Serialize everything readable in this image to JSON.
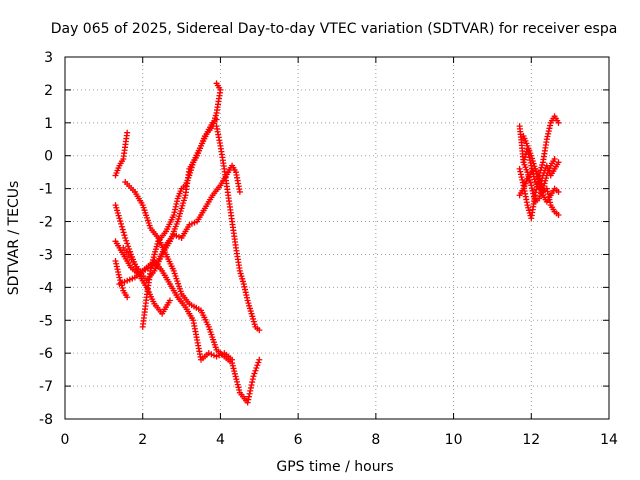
{
  "chart_data": {
    "type": "scatter",
    "title": "Day 065 of 2025, Sidereal Day-to-day VTEC variation (SDTVAR) for receiver espa",
    "xlabel": "GPS time / hours",
    "ylabel": "SDTVAR / TECUs",
    "xlim": [
      0,
      14
    ],
    "ylim": [
      -8,
      3
    ],
    "x_ticks": [
      "0",
      "2",
      "4",
      "6",
      "8",
      "10",
      "12",
      "14"
    ],
    "y_ticks": [
      "3",
      "2",
      "1",
      "0",
      "-1",
      "-2",
      "-3",
      "-4",
      "-5",
      "-6",
      "-7",
      "-8"
    ],
    "grid": true,
    "marker": "+",
    "color": "#ff0000",
    "series": [
      {
        "points": [
          [
            1.3,
            -0.6
          ],
          [
            1.4,
            -0.3
          ],
          [
            1.5,
            -0.1
          ],
          [
            1.6,
            0.7
          ]
        ]
      },
      {
        "points": [
          [
            1.55,
            -0.8
          ],
          [
            1.8,
            -1.1
          ],
          [
            2.0,
            -1.5
          ],
          [
            2.2,
            -2.2
          ],
          [
            2.4,
            -2.5
          ],
          [
            2.6,
            -3.0
          ],
          [
            2.8,
            -3.5
          ],
          [
            3.0,
            -4.2
          ],
          [
            3.2,
            -4.5
          ],
          [
            3.5,
            -4.7
          ],
          [
            3.7,
            -5.2
          ],
          [
            3.9,
            -5.9
          ],
          [
            4.1,
            -6.1
          ],
          [
            4.3,
            -6.3
          ],
          [
            4.5,
            -7.2
          ],
          [
            4.7,
            -7.5
          ],
          [
            4.85,
            -6.7
          ],
          [
            5.0,
            -6.2
          ]
        ]
      },
      {
        "points": [
          [
            1.3,
            -1.5
          ],
          [
            1.4,
            -1.9
          ],
          [
            1.55,
            -2.5
          ],
          [
            1.7,
            -3.0
          ],
          [
            1.9,
            -3.6
          ],
          [
            2.1,
            -4.0
          ],
          [
            2.3,
            -4.5
          ],
          [
            2.5,
            -4.8
          ],
          [
            2.6,
            -4.6
          ],
          [
            2.7,
            -4.4
          ]
        ]
      },
      {
        "points": [
          [
            1.3,
            -2.6
          ],
          [
            1.5,
            -3.0
          ],
          [
            1.7,
            -3.4
          ],
          [
            1.9,
            -3.6
          ],
          [
            2.1,
            -3.4
          ],
          [
            2.3,
            -3.2
          ],
          [
            2.5,
            -3.5
          ],
          [
            2.7,
            -3.9
          ],
          [
            2.9,
            -4.3
          ],
          [
            3.1,
            -4.6
          ],
          [
            3.3,
            -5.0
          ],
          [
            3.4,
            -5.6
          ],
          [
            3.5,
            -6.2
          ],
          [
            3.7,
            -6.0
          ],
          [
            3.9,
            -6.1
          ],
          [
            4.1,
            -6.0
          ],
          [
            4.3,
            -6.2
          ]
        ]
      },
      {
        "points": [
          [
            1.3,
            -3.2
          ],
          [
            1.4,
            -3.7
          ],
          [
            1.5,
            -4.1
          ],
          [
            1.6,
            -4.3
          ]
        ]
      },
      {
        "points": [
          [
            1.4,
            -3.9
          ],
          [
            1.6,
            -3.8
          ],
          [
            1.8,
            -3.7
          ],
          [
            2.0,
            -3.5
          ],
          [
            2.2,
            -3.4
          ],
          [
            2.4,
            -3.2
          ],
          [
            2.6,
            -2.7
          ],
          [
            2.8,
            -2.4
          ],
          [
            3.0,
            -2.5
          ],
          [
            3.2,
            -2.1
          ],
          [
            3.4,
            -2.0
          ],
          [
            3.6,
            -1.6
          ],
          [
            3.8,
            -1.2
          ],
          [
            4.0,
            -0.9
          ],
          [
            4.2,
            -0.5
          ],
          [
            4.3,
            -0.3
          ],
          [
            4.4,
            -0.5
          ],
          [
            4.5,
            -1.1
          ]
        ]
      },
      {
        "points": [
          [
            2.0,
            -5.2
          ],
          [
            2.1,
            -4.3
          ],
          [
            2.2,
            -3.5
          ],
          [
            2.3,
            -3.0
          ],
          [
            2.4,
            -2.6
          ],
          [
            2.6,
            -2.3
          ],
          [
            2.8,
            -1.8
          ],
          [
            2.9,
            -1.3
          ],
          [
            3.0,
            -1.0
          ],
          [
            3.1,
            -0.9
          ],
          [
            3.2,
            -0.6
          ],
          [
            3.3,
            -0.2
          ],
          [
            3.5,
            0.3
          ],
          [
            3.7,
            0.8
          ],
          [
            3.8,
            1.0
          ],
          [
            3.9,
            1.1
          ]
        ]
      },
      {
        "points": [
          [
            1.5,
            -2.8
          ],
          [
            1.8,
            -3.3
          ],
          [
            2.1,
            -3.8
          ],
          [
            2.3,
            -3.5
          ],
          [
            2.5,
            -3.0
          ],
          [
            2.7,
            -2.6
          ],
          [
            2.9,
            -2.0
          ],
          [
            3.1,
            -1.2
          ],
          [
            3.2,
            -0.4
          ],
          [
            3.4,
            0.0
          ],
          [
            3.6,
            0.6
          ],
          [
            3.8,
            0.9
          ],
          [
            3.9,
            1.3
          ],
          [
            4.0,
            2.0
          ],
          [
            3.9,
            2.2
          ]
        ]
      },
      {
        "points": [
          [
            3.9,
            0.9
          ],
          [
            4.0,
            0.3
          ],
          [
            4.1,
            -0.4
          ],
          [
            4.2,
            -1.2
          ],
          [
            4.3,
            -2.0
          ],
          [
            4.4,
            -2.8
          ],
          [
            4.5,
            -3.5
          ],
          [
            4.6,
            -3.9
          ],
          [
            4.7,
            -4.4
          ],
          [
            4.8,
            -4.8
          ],
          [
            4.9,
            -5.2
          ],
          [
            5.0,
            -5.3
          ]
        ]
      },
      {
        "points": [
          [
            11.7,
            0.9
          ],
          [
            11.75,
            0.4
          ],
          [
            11.8,
            -0.2
          ],
          [
            11.9,
            -0.5
          ],
          [
            12.0,
            -0.9
          ],
          [
            12.1,
            -1.4
          ],
          [
            12.2,
            -1.3
          ],
          [
            12.3,
            -1.0
          ],
          [
            12.4,
            -0.6
          ],
          [
            12.5,
            -0.3
          ],
          [
            12.6,
            -0.1
          ]
        ]
      },
      {
        "points": [
          [
            11.7,
            -0.4
          ],
          [
            11.8,
            -0.9
          ],
          [
            11.9,
            -1.5
          ],
          [
            12.0,
            -1.9
          ],
          [
            12.1,
            -1.2
          ],
          [
            12.2,
            -0.6
          ],
          [
            12.3,
            -0.2
          ],
          [
            12.4,
            0.5
          ],
          [
            12.5,
            1.0
          ],
          [
            12.6,
            1.2
          ],
          [
            12.7,
            1.0
          ]
        ]
      },
      {
        "points": [
          [
            11.8,
            0.6
          ],
          [
            11.9,
            0.3
          ],
          [
            12.0,
            0.0
          ],
          [
            12.1,
            -0.4
          ],
          [
            12.2,
            -0.8
          ],
          [
            12.3,
            -1.2
          ],
          [
            12.4,
            -1.4
          ],
          [
            12.5,
            -1.2
          ],
          [
            12.6,
            -1.0
          ],
          [
            12.7,
            -1.1
          ]
        ]
      },
      {
        "points": [
          [
            11.7,
            -1.2
          ],
          [
            11.8,
            -1.0
          ],
          [
            11.9,
            -0.7
          ],
          [
            12.0,
            -0.5
          ],
          [
            12.1,
            -0.4
          ],
          [
            12.2,
            -0.7
          ],
          [
            12.3,
            -1.1
          ],
          [
            12.4,
            -1.0
          ],
          [
            12.5,
            -1.5
          ],
          [
            12.6,
            -1.7
          ],
          [
            12.7,
            -1.8
          ]
        ]
      },
      {
        "points": [
          [
            11.8,
            -0.2
          ],
          [
            11.9,
            0.2
          ],
          [
            12.0,
            -0.3
          ],
          [
            12.1,
            -0.8
          ],
          [
            12.2,
            -1.0
          ],
          [
            12.3,
            -0.6
          ],
          [
            12.4,
            -0.3
          ],
          [
            12.5,
            -0.6
          ],
          [
            12.6,
            -0.4
          ],
          [
            12.7,
            -0.2
          ]
        ]
      }
    ]
  }
}
